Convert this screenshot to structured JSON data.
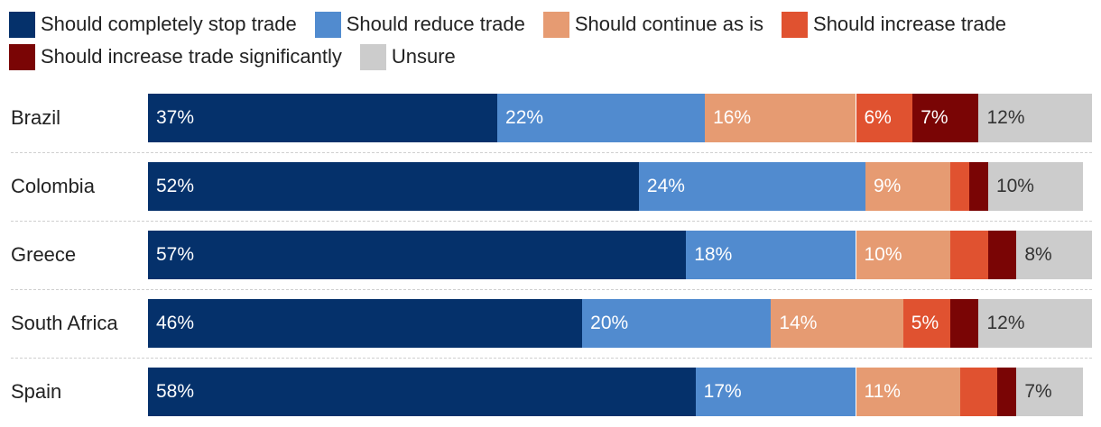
{
  "chart_data": {
    "type": "bar",
    "orientation": "horizontal",
    "stacked": true,
    "categories": [
      "Brazil",
      "Colombia",
      "Greece",
      "South Africa",
      "Spain"
    ],
    "series": [
      {
        "name": "Should completely stop trade",
        "color": "#05316b",
        "values": [
          37,
          52,
          57,
          46,
          58
        ],
        "labels": [
          "37%",
          "52%",
          "57%",
          "46%",
          "58%"
        ]
      },
      {
        "name": "Should reduce trade",
        "color": "#518bcf",
        "values": [
          22,
          24,
          18,
          20,
          17
        ],
        "labels": [
          "22%",
          "24%",
          "18%",
          "20%",
          "17%"
        ]
      },
      {
        "name": "Should continue as is",
        "color": "#e69b72",
        "values": [
          16,
          9,
          10,
          14,
          11
        ],
        "labels": [
          "16%",
          "9%",
          "10%",
          "14%",
          "11%"
        ]
      },
      {
        "name": "Should increase trade",
        "color": "#e05230",
        "values": [
          6,
          2,
          4,
          5,
          4
        ],
        "labels": [
          "6%",
          "",
          "",
          "5%",
          ""
        ]
      },
      {
        "name": "Should increase trade significantly",
        "color": "#7a0505",
        "values": [
          7,
          2,
          3,
          3,
          2
        ],
        "labels": [
          "7%",
          "",
          "",
          "",
          ""
        ]
      },
      {
        "name": "Unsure",
        "color": "#cccccc",
        "values": [
          12,
          10,
          8,
          12,
          7
        ],
        "labels": [
          "12%",
          "10%",
          "8%",
          "12%",
          "7%"
        ]
      }
    ],
    "xlim": [
      0,
      100
    ],
    "grid": false,
    "legend_position": "top"
  }
}
